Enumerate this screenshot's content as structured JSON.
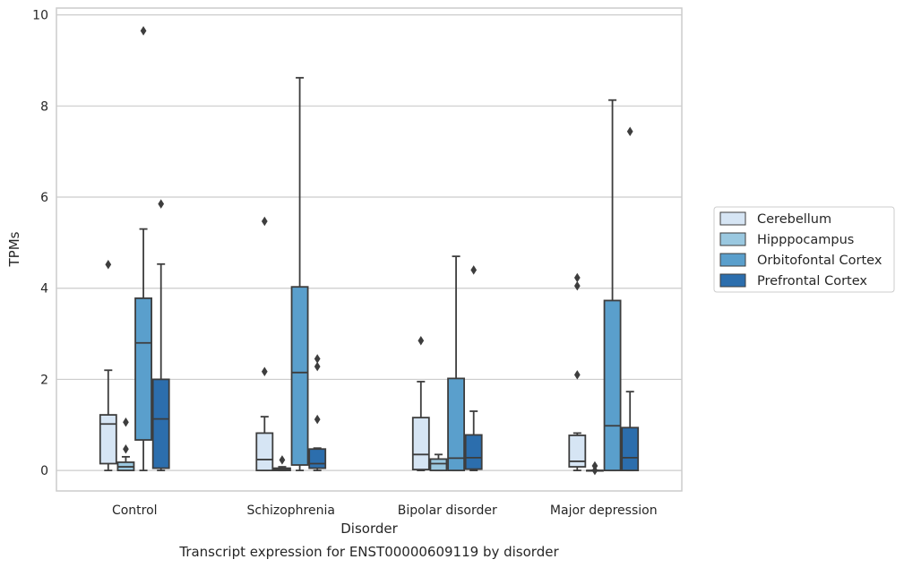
{
  "chart_data": {
    "type": "box",
    "title": "Transcript expression for ENST00000609119 by disorder",
    "xlabel": "Disorder",
    "ylabel": "TPMs",
    "ylim": [
      -0.45,
      10.15
    ],
    "yticks": [
      0,
      2,
      4,
      6,
      8,
      10
    ],
    "grid": "horizontal",
    "legend_position": "right",
    "categories": [
      "Control",
      "Schizophrenia",
      "Bipolar disorder",
      "Major depression"
    ],
    "series": [
      {
        "name": "Cerebellum",
        "color": "#d6e5f4",
        "boxes": [
          {
            "whislo": 0.0,
            "q1": 0.15,
            "med": 1.02,
            "q3": 1.22,
            "whishi": 2.2,
            "fliers": [
              4.52
            ]
          },
          {
            "whislo": 0.0,
            "q1": 0.0,
            "med": 0.24,
            "q3": 0.82,
            "whishi": 1.18,
            "fliers": [
              2.17,
              5.47
            ]
          },
          {
            "whislo": 0.0,
            "q1": 0.02,
            "med": 0.35,
            "q3": 1.16,
            "whishi": 1.95,
            "fliers": [
              2.85
            ]
          },
          {
            "whislo": 0.0,
            "q1": 0.08,
            "med": 0.2,
            "q3": 0.77,
            "whishi": 0.82,
            "fliers": [
              2.1,
              4.05,
              4.23
            ]
          }
        ]
      },
      {
        "name": "Hipppocampus",
        "color": "#9ac8e0",
        "boxes": [
          {
            "whislo": 0.0,
            "q1": 0.0,
            "med": 0.08,
            "q3": 0.18,
            "whishi": 0.3,
            "fliers": [
              0.47,
              1.06
            ]
          },
          {
            "whislo": 0.0,
            "q1": 0.0,
            "med": 0.02,
            "q3": 0.05,
            "whishi": 0.08,
            "fliers": [
              0.23
            ]
          },
          {
            "whislo": 0.0,
            "q1": 0.0,
            "med": 0.15,
            "q3": 0.25,
            "whishi": 0.35,
            "fliers": []
          },
          {
            "whislo": 0.0,
            "q1": 0.0,
            "med": 0.0,
            "q3": 0.0,
            "whishi": 0.0,
            "fliers": [
              0.0,
              0.1
            ]
          }
        ]
      },
      {
        "name": "Orbitofontal Cortex",
        "color": "#5a9fcc",
        "boxes": [
          {
            "whislo": 0.0,
            "q1": 0.67,
            "med": 2.8,
            "q3": 3.78,
            "whishi": 5.3,
            "fliers": [
              9.65
            ]
          },
          {
            "whislo": 0.0,
            "q1": 0.12,
            "med": 2.15,
            "q3": 4.03,
            "whishi": 8.62,
            "fliers": []
          },
          {
            "whislo": 0.0,
            "q1": 0.0,
            "med": 0.27,
            "q3": 2.02,
            "whishi": 4.7,
            "fliers": []
          },
          {
            "whislo": 0.0,
            "q1": 0.0,
            "med": 0.98,
            "q3": 3.73,
            "whishi": 8.13,
            "fliers": []
          }
        ]
      },
      {
        "name": "Prefrontal Cortex",
        "color": "#2c6ead",
        "boxes": [
          {
            "whislo": 0.0,
            "q1": 0.05,
            "med": 1.13,
            "q3": 2.0,
            "whishi": 4.53,
            "fliers": [
              5.85
            ]
          },
          {
            "whislo": 0.0,
            "q1": 0.05,
            "med": 0.15,
            "q3": 0.47,
            "whishi": 0.49,
            "fliers": [
              1.12,
              2.28,
              2.45
            ]
          },
          {
            "whislo": 0.0,
            "q1": 0.03,
            "med": 0.28,
            "q3": 0.78,
            "whishi": 1.3,
            "fliers": [
              4.4
            ]
          },
          {
            "whislo": 0.0,
            "q1": 0.0,
            "med": 0.28,
            "q3": 0.94,
            "whishi": 1.73,
            "fliers": [
              7.44
            ]
          }
        ]
      }
    ]
  }
}
